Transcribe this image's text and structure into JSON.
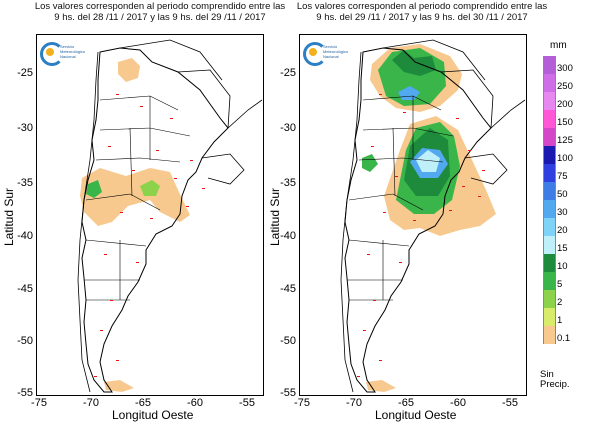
{
  "left_panel": {
    "caption_line1": "Los valores corresponden al periodo comprendido entre las",
    "caption_line2": "9 hs. del 28 /11 / 2017  y las 9 hs. del 29 /11 / 2017"
  },
  "right_panel": {
    "caption_line1": "Los valores corresponden al periodo comprendido entre las",
    "caption_line2": "9 hs. del 29 /11 / 2017  y las 9 hs. del 30 /11 / 2017"
  },
  "logo": {
    "line1": "Servicio",
    "line2": "Meteorológico",
    "line3": "Nacional"
  },
  "axes": {
    "ylabel": "Latitud Sur",
    "xlabel": "Longitud Oeste",
    "y_ticks": [
      "-25",
      "-30",
      "-35",
      "-40",
      "-45",
      "-50",
      "-55"
    ],
    "x_ticks": [
      "-75",
      "-70",
      "-65",
      "-60",
      "-55"
    ]
  },
  "legend": {
    "unit": "mm",
    "no_precip_line1": "Sin",
    "no_precip_line2": "Precip.",
    "levels": [
      {
        "label": "300",
        "color": "#b45ed8"
      },
      {
        "label": "250",
        "color": "#cf6fe8"
      },
      {
        "label": "200",
        "color": "#e688f0"
      },
      {
        "label": "150",
        "color": "#ff57d6"
      },
      {
        "label": "125",
        "color": "#d447c8"
      },
      {
        "label": "100",
        "color": "#1a1ab0"
      },
      {
        "label": "75",
        "color": "#2f3fe0"
      },
      {
        "label": "50",
        "color": "#3e7de6"
      },
      {
        "label": "30",
        "color": "#52a9f0"
      },
      {
        "label": "20",
        "color": "#7fd3f7"
      },
      {
        "label": "15",
        "color": "#bff0fa"
      },
      {
        "label": "10",
        "color": "#1e8a3c"
      },
      {
        "label": "5",
        "color": "#39b54a"
      },
      {
        "label": "2",
        "color": "#8cd24b"
      },
      {
        "label": "1",
        "color": "#d8eb6a"
      },
      {
        "label": "0.1",
        "color": "#f7c98f"
      }
    ]
  }
}
